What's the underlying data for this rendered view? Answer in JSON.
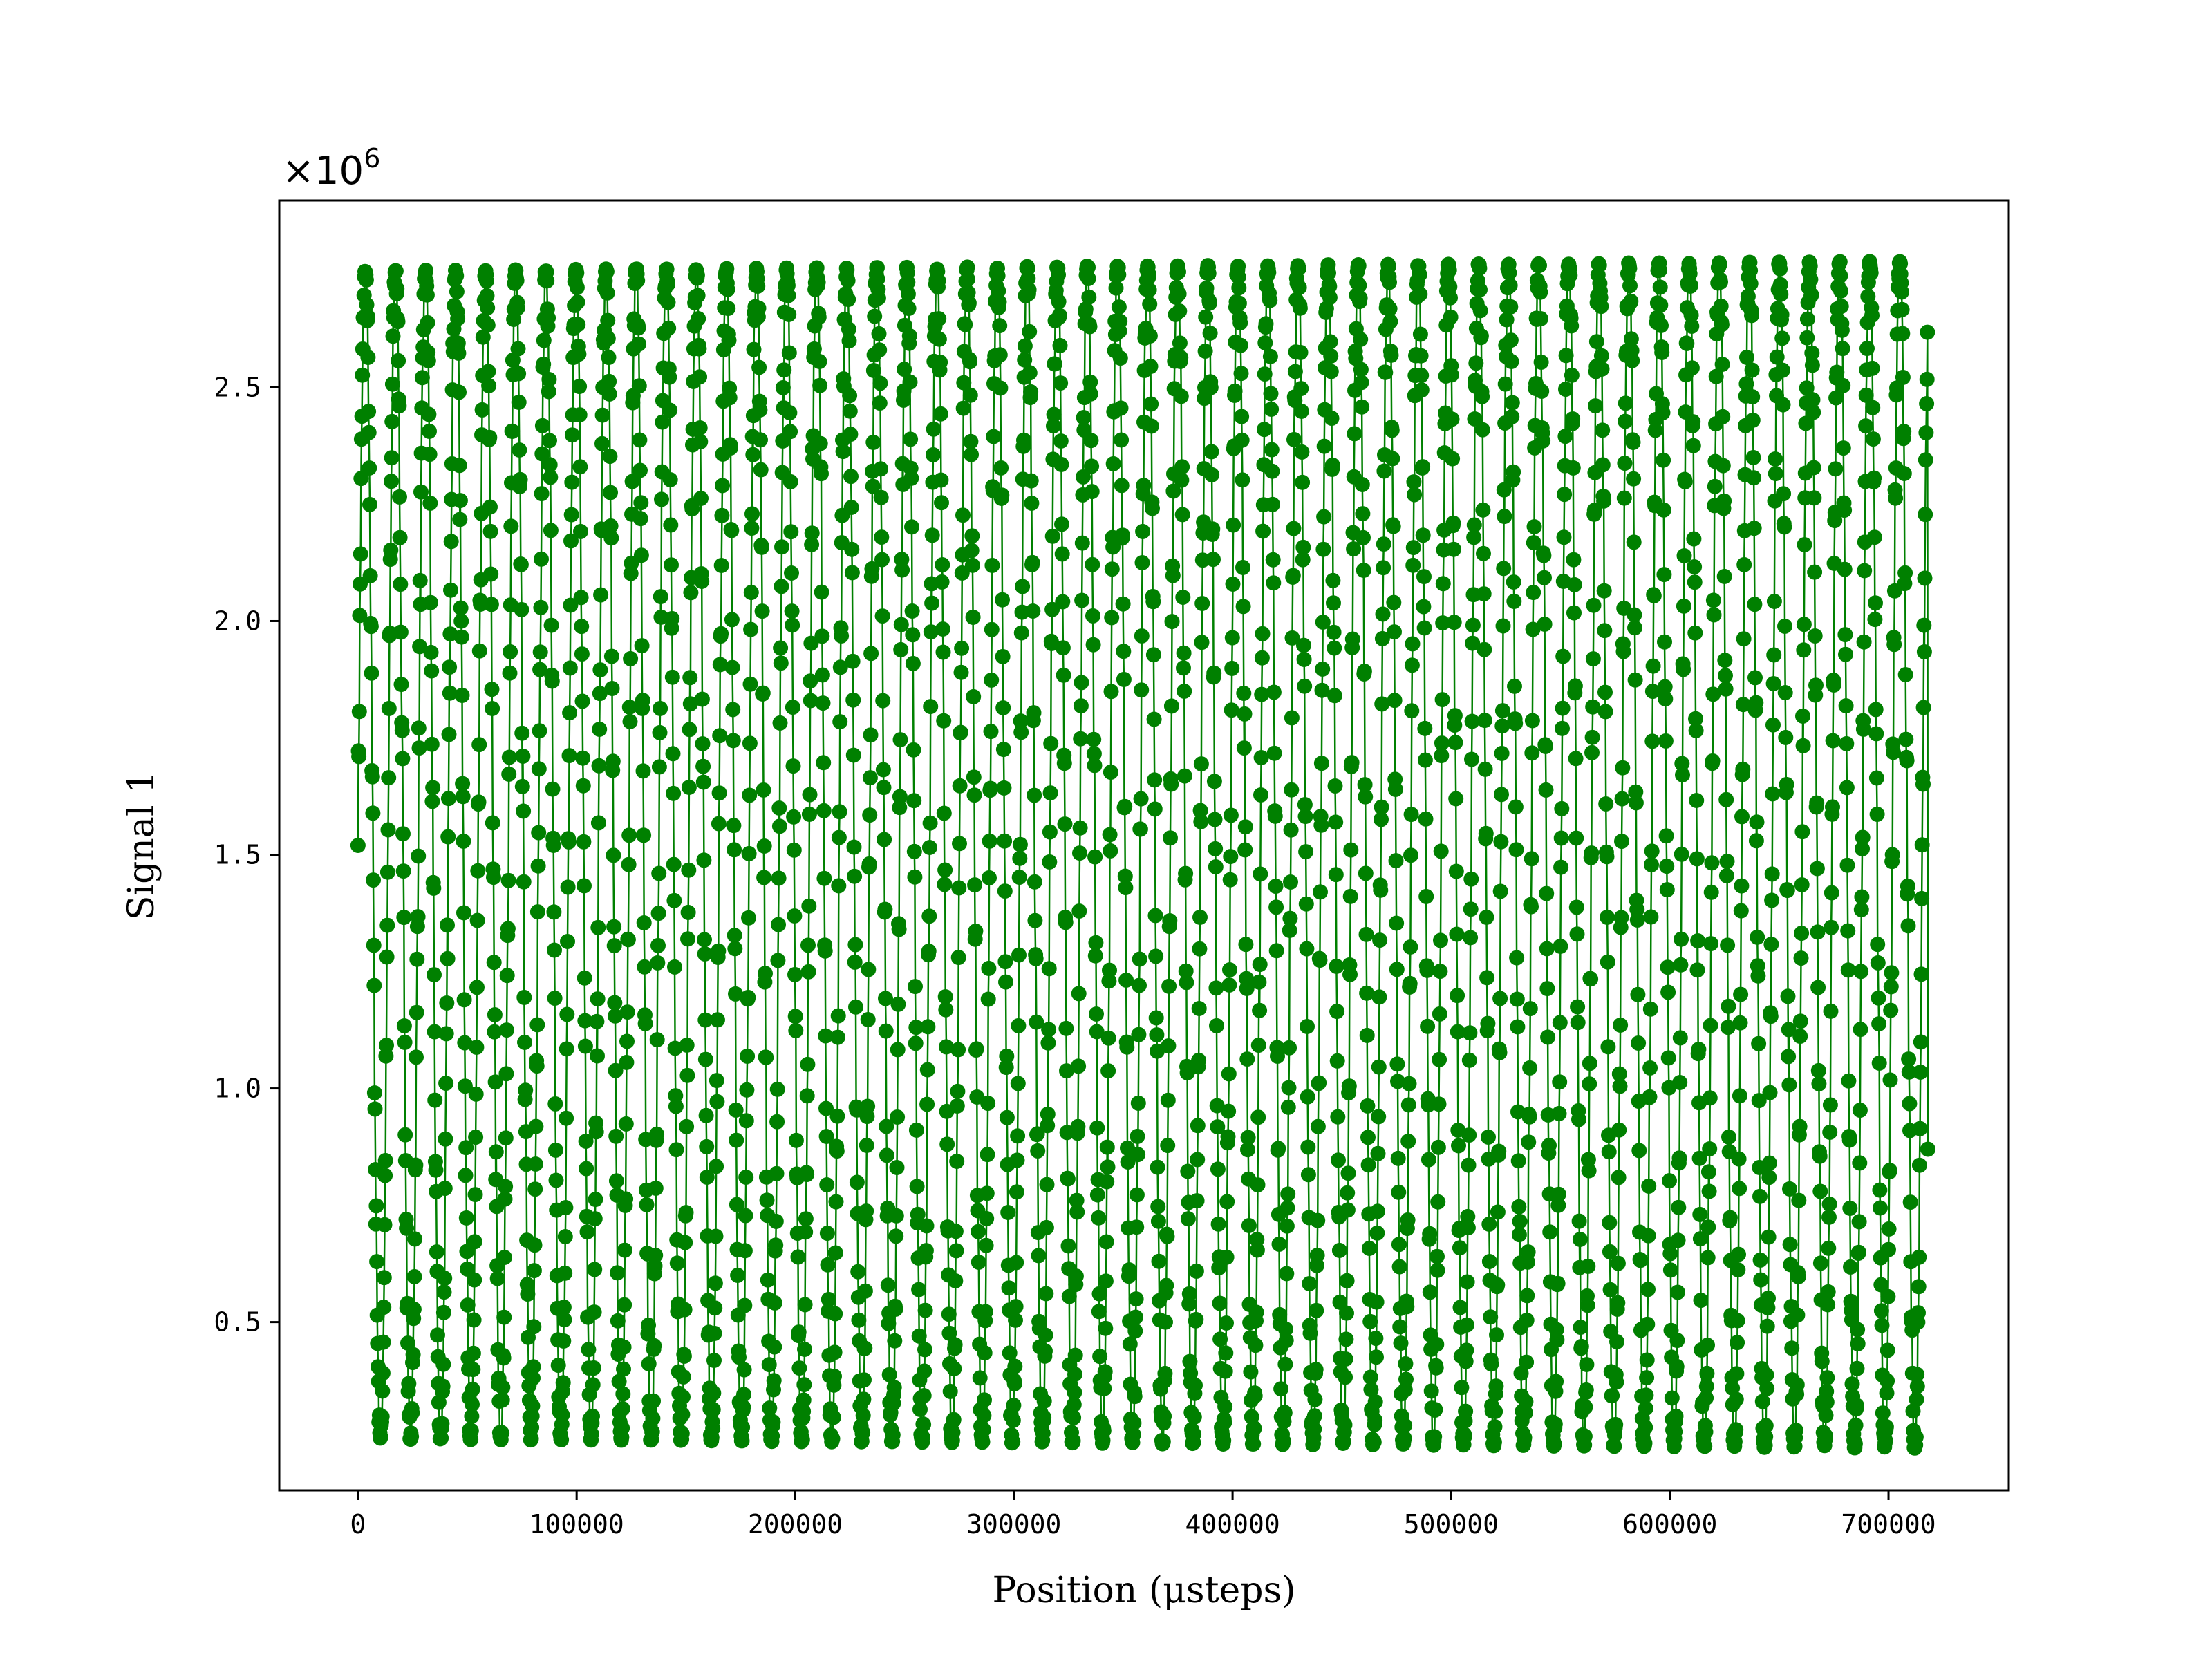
{
  "chart_data": {
    "type": "line",
    "xlabel": "Position (μsteps)",
    "ylabel": "Signal 1",
    "offset_text": "×10",
    "offset_exponent": "6",
    "xlim": [
      -36000,
      755000
    ],
    "ylim": [
      0.14,
      2.9
    ],
    "y_scale": 1000000,
    "x_ticks": [
      0,
      100000,
      200000,
      300000,
      400000,
      500000,
      600000,
      700000
    ],
    "x_tick_labels": [
      "0",
      "100000",
      "200000",
      "300000",
      "400000",
      "500000",
      "600000",
      "700000"
    ],
    "y_ticks": [
      0.5,
      1.0,
      1.5,
      2.0,
      2.5
    ],
    "y_tick_labels": [
      "0.5",
      "1.0",
      "1.5",
      "2.0",
      "2.5"
    ],
    "grid": false,
    "legend": "none",
    "colors": {
      "series": "#008000",
      "axes": "#000000",
      "background": "#ffffff"
    },
    "series": [
      {
        "marker": "circle",
        "line": "solid",
        "x_start": 0,
        "x_end": 718000,
        "point_count": 3590,
        "period_steps": 13760,
        "y_min": 0.25,
        "y_max": 2.75,
        "y_start": 1.52,
        "y_end": 0.87,
        "y_min_end": 0.23,
        "y_max_end": 2.77
      }
    ]
  }
}
